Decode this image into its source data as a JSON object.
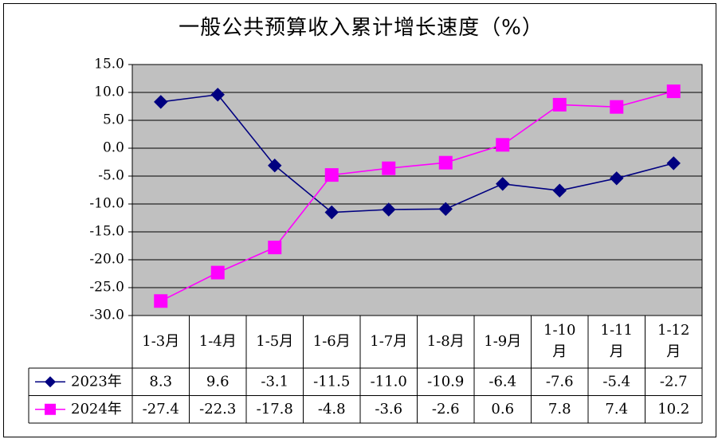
{
  "chart_data": {
    "type": "line",
    "title": "一般公共预算收入累计增长速度（%）",
    "categories": [
      "1-3月",
      "1-4月",
      "1-5月",
      "1-6月",
      "1-7月",
      "1-8月",
      "1-9月",
      "1-10月",
      "1-11月",
      "1-12月"
    ],
    "category_lines": [
      [
        "1-3月"
      ],
      [
        "1-4月"
      ],
      [
        "1-5月"
      ],
      [
        "1-6月"
      ],
      [
        "1-7月"
      ],
      [
        "1-8月"
      ],
      [
        "1-9月"
      ],
      [
        "1-10",
        "月"
      ],
      [
        "1-11",
        "月"
      ],
      [
        "1-12",
        "月"
      ]
    ],
    "ylim": [
      -30,
      15
    ],
    "yticks": [
      15,
      10,
      5,
      0,
      -5,
      -10,
      -15,
      -20,
      -25,
      -30
    ],
    "ytick_labels": [
      "15.0",
      "10.0",
      "5.0",
      "0.0",
      "-5.0",
      "-10.0",
      "-15.0",
      "-20.0",
      "-25.0",
      "-30.0"
    ],
    "grid": true,
    "legend": "data-table",
    "series": [
      {
        "name": "2023年",
        "color": "#000080",
        "marker": "diamond",
        "values": [
          8.3,
          9.6,
          -3.1,
          -11.5,
          -11.0,
          -10.9,
          -6.4,
          -7.6,
          -5.4,
          -2.7
        ],
        "value_labels": [
          "8.3",
          "9.6",
          "-3.1",
          "-11.5",
          "-11.0",
          "-10.9",
          "-6.4",
          "-7.6",
          "-5.4",
          "-2.7"
        ]
      },
      {
        "name": "2024年",
        "color": "#FF00FF",
        "marker": "square",
        "values": [
          -27.4,
          -22.3,
          -17.8,
          -4.8,
          -3.6,
          -2.6,
          0.6,
          7.8,
          7.4,
          10.2
        ],
        "value_labels": [
          "-27.4",
          "-22.3",
          "-17.8",
          "-4.8",
          "-3.6",
          "-2.6",
          "0.6",
          "7.8",
          "7.4",
          "10.2"
        ]
      }
    ],
    "plot_background": "#C0C0C0"
  }
}
